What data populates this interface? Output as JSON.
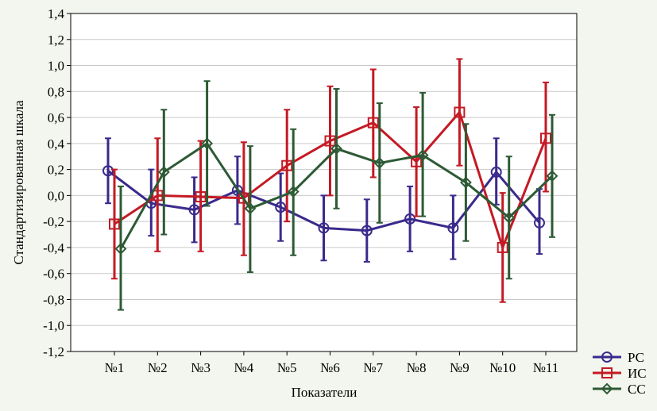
{
  "chart_data": {
    "type": "line",
    "title": "",
    "xlabel": "Показатели",
    "ylabel": "Стандартизированная шкала",
    "ylim": [
      -1.2,
      1.4
    ],
    "yticks": [
      -1.2,
      -1.0,
      -0.8,
      -0.6,
      -0.4,
      -0.2,
      0.0,
      0.2,
      0.4,
      0.6,
      0.8,
      1.0,
      1.2,
      1.4
    ],
    "ytick_labels": [
      "-1,2",
      "-1,0",
      "-0,8",
      "-0,6",
      "-0,4",
      "-0,2",
      "0,0",
      "0,2",
      "0,4",
      "0,6",
      "0,8",
      "1,0",
      "1,2",
      "1,4"
    ],
    "categories": [
      "№1",
      "№2",
      "№3",
      "№4",
      "№5",
      "№6",
      "№7",
      "№8",
      "№9",
      "№10",
      "№11"
    ],
    "grid": true,
    "error_bars": true,
    "legend_position": "bottom-right",
    "series": [
      {
        "name": "РС",
        "color": "#3a2a8c",
        "marker": "circle",
        "values": [
          0.19,
          -0.06,
          -0.11,
          0.04,
          -0.09,
          -0.25,
          -0.27,
          -0.18,
          -0.25,
          0.18,
          -0.21
        ],
        "lower": [
          -0.06,
          -0.31,
          -0.36,
          -0.22,
          -0.35,
          -0.5,
          -0.51,
          -0.43,
          -0.49,
          -0.07,
          -0.45
        ],
        "upper": [
          0.44,
          0.2,
          0.14,
          0.3,
          0.17,
          0.0,
          -0.03,
          0.07,
          0.0,
          0.44,
          0.05
        ]
      },
      {
        "name": "ИС",
        "color": "#c41a24",
        "marker": "square",
        "values": [
          -0.22,
          0.0,
          -0.01,
          -0.02,
          0.23,
          0.42,
          0.56,
          0.26,
          0.64,
          -0.4,
          0.44
        ],
        "lower": [
          -0.64,
          -0.43,
          -0.43,
          -0.46,
          -0.2,
          0.0,
          0.14,
          -0.16,
          0.23,
          -0.82,
          0.03
        ],
        "upper": [
          0.2,
          0.44,
          0.42,
          0.41,
          0.66,
          0.84,
          0.97,
          0.68,
          1.05,
          0.02,
          0.87
        ]
      },
      {
        "name": "СС",
        "color": "#2d5a35",
        "marker": "diamond",
        "values": [
          -0.41,
          0.18,
          0.4,
          -0.1,
          0.03,
          0.36,
          0.25,
          0.31,
          0.1,
          -0.17,
          0.15
        ],
        "lower": [
          -0.88,
          -0.3,
          -0.08,
          -0.59,
          -0.46,
          -0.1,
          -0.21,
          -0.16,
          -0.35,
          -0.64,
          -0.32
        ],
        "upper": [
          0.07,
          0.66,
          0.88,
          0.38,
          0.51,
          0.82,
          0.71,
          0.79,
          0.55,
          0.3,
          0.62
        ]
      }
    ]
  }
}
